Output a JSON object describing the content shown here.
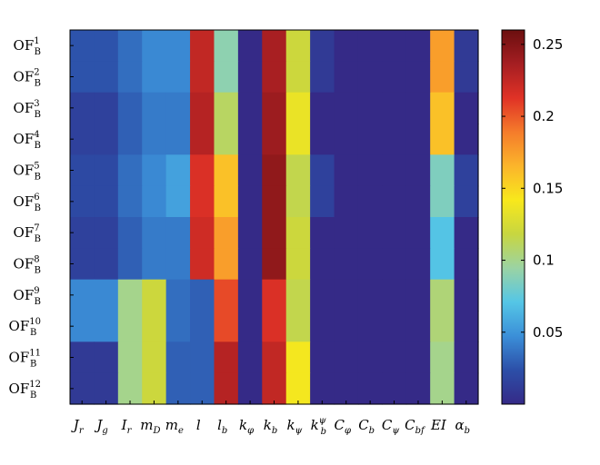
{
  "chart_data": {
    "type": "heatmap",
    "rows": [
      {
        "base": "OF",
        "sub": "B",
        "sup": "1"
      },
      {
        "base": "OF",
        "sub": "B",
        "sup": "2"
      },
      {
        "base": "OF",
        "sub": "B",
        "sup": "3"
      },
      {
        "base": "OF",
        "sub": "B",
        "sup": "4"
      },
      {
        "base": "OF",
        "sub": "B",
        "sup": "5"
      },
      {
        "base": "OF",
        "sub": "B",
        "sup": "6"
      },
      {
        "base": "OF",
        "sub": "B",
        "sup": "7"
      },
      {
        "base": "OF",
        "sub": "B",
        "sup": "8"
      },
      {
        "base": "OF",
        "sub": "B",
        "sup": "9"
      },
      {
        "base": "OF",
        "sub": "B",
        "sup": "10"
      },
      {
        "base": "OF",
        "sub": "B",
        "sup": "11"
      },
      {
        "base": "OF",
        "sub": "B",
        "sup": "12"
      }
    ],
    "columns": [
      {
        "base": "J",
        "sub": "r",
        "sup": ""
      },
      {
        "base": "J",
        "sub": "g",
        "sup": ""
      },
      {
        "base": "I",
        "sub": "r",
        "sup": ""
      },
      {
        "base": "m",
        "sub": "D",
        "sup": ""
      },
      {
        "base": "m",
        "sub": "e",
        "sup": ""
      },
      {
        "base": "l",
        "sub": "",
        "sup": ""
      },
      {
        "base": "l",
        "sub": "b",
        "sup": ""
      },
      {
        "base": "k",
        "sub": "φ",
        "sup": ""
      },
      {
        "base": "k",
        "sub": "b",
        "sup": ""
      },
      {
        "base": "k",
        "sub": "ψ",
        "sup": ""
      },
      {
        "base": "k",
        "sub": "b",
        "sup": "ψ"
      },
      {
        "base": "C",
        "sub": "φ",
        "sup": ""
      },
      {
        "base": "C",
        "sub": "b",
        "sup": ""
      },
      {
        "base": "C",
        "sub": "ψ",
        "sup": ""
      },
      {
        "base": "C",
        "sub": "bf",
        "sup": ""
      },
      {
        "base": "EI",
        "sub": "",
        "sup": ""
      },
      {
        "base": "α",
        "sub": "b",
        "sup": ""
      }
    ],
    "values": [
      [
        0.025,
        0.025,
        0.035,
        0.045,
        0.045,
        0.225,
        0.09,
        0.0,
        0.235,
        0.12,
        0.01,
        0.0,
        0.0,
        0.0,
        0.0,
        0.175,
        0.01
      ],
      [
        0.025,
        0.025,
        0.035,
        0.045,
        0.045,
        0.225,
        0.09,
        0.0,
        0.235,
        0.12,
        0.01,
        0.0,
        0.0,
        0.0,
        0.0,
        0.175,
        0.01
      ],
      [
        0.015,
        0.015,
        0.03,
        0.04,
        0.04,
        0.23,
        0.11,
        0.0,
        0.24,
        0.135,
        0.0,
        0.0,
        0.0,
        0.0,
        0.0,
        0.16,
        0.0
      ],
      [
        0.015,
        0.015,
        0.03,
        0.04,
        0.04,
        0.23,
        0.11,
        0.0,
        0.24,
        0.135,
        0.0,
        0.0,
        0.0,
        0.0,
        0.0,
        0.16,
        0.0
      ],
      [
        0.02,
        0.02,
        0.035,
        0.045,
        0.055,
        0.215,
        0.16,
        0.0,
        0.245,
        0.115,
        0.015,
        0.0,
        0.0,
        0.0,
        0.0,
        0.085,
        0.015
      ],
      [
        0.02,
        0.02,
        0.035,
        0.045,
        0.055,
        0.215,
        0.16,
        0.0,
        0.245,
        0.115,
        0.015,
        0.0,
        0.0,
        0.0,
        0.0,
        0.085,
        0.015
      ],
      [
        0.015,
        0.015,
        0.03,
        0.04,
        0.04,
        0.22,
        0.175,
        0.0,
        0.245,
        0.12,
        0.0,
        0.0,
        0.0,
        0.0,
        0.0,
        0.07,
        0.0
      ],
      [
        0.015,
        0.015,
        0.03,
        0.04,
        0.04,
        0.22,
        0.175,
        0.0,
        0.245,
        0.12,
        0.0,
        0.0,
        0.0,
        0.0,
        0.0,
        0.07,
        0.0
      ],
      [
        0.045,
        0.045,
        0.1,
        0.12,
        0.035,
        0.03,
        0.205,
        0.0,
        0.215,
        0.115,
        0.0,
        0.0,
        0.0,
        0.0,
        0.0,
        0.105,
        0.0
      ],
      [
        0.045,
        0.045,
        0.1,
        0.12,
        0.035,
        0.03,
        0.205,
        0.0,
        0.215,
        0.115,
        0.0,
        0.0,
        0.0,
        0.0,
        0.0,
        0.105,
        0.0
      ],
      [
        0.01,
        0.01,
        0.1,
        0.12,
        0.03,
        0.03,
        0.23,
        0.0,
        0.225,
        0.14,
        0.0,
        0.0,
        0.0,
        0.0,
        0.0,
        0.1,
        0.0
      ],
      [
        0.01,
        0.01,
        0.1,
        0.12,
        0.03,
        0.03,
        0.23,
        0.0,
        0.225,
        0.14,
        0.0,
        0.0,
        0.0,
        0.0,
        0.0,
        0.1,
        0.0
      ]
    ],
    "colorbar": {
      "min": 0.0,
      "max": 0.26,
      "ticks": [
        0.05,
        0.1,
        0.15,
        0.2,
        0.25
      ],
      "tick_labels": [
        "0.05",
        "0.1",
        "0.15",
        "0.2",
        "0.25"
      ]
    },
    "colormap": [
      "#352a87",
      "#2c4fa8",
      "#3b8fd8",
      "#55c6e6",
      "#9bd3a3",
      "#c8d640",
      "#f8e81c",
      "#fbb52b",
      "#f57c2b",
      "#e03226",
      "#a51e22",
      "#6b0f0f"
    ],
    "title": "",
    "xlabel": "",
    "ylabel": ""
  }
}
